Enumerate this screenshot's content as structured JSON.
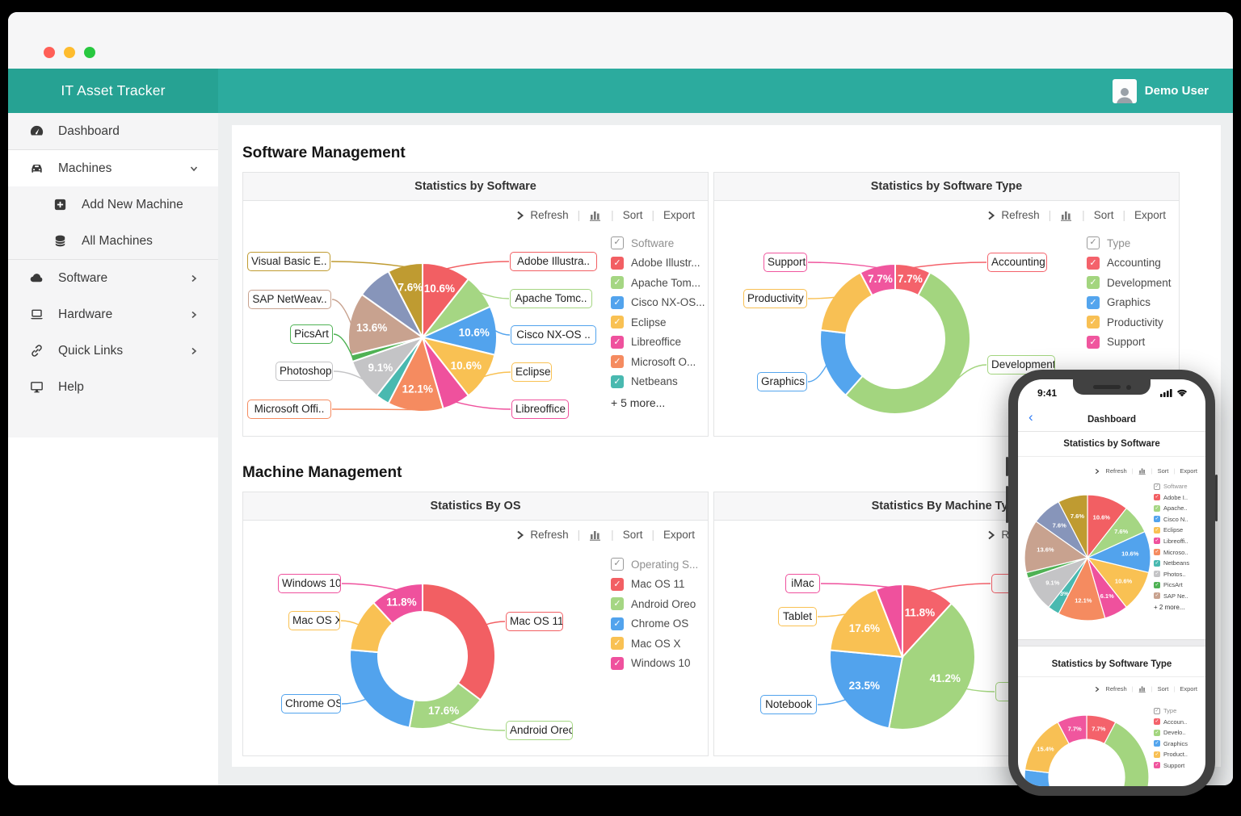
{
  "window": {
    "traffic_lights": [
      "close",
      "minimize",
      "zoom"
    ]
  },
  "header": {
    "app_title": "IT Asset Tracker",
    "user_name": "Demo User",
    "avatar_icon": "user-avatar-icon"
  },
  "sidebar": {
    "items": [
      {
        "label": "Dashboard",
        "icon": "dashboard-gauge-icon",
        "row": "gray"
      },
      {
        "divider": true
      },
      {
        "label": "Machines",
        "icon": "car-icon",
        "chevron": "down",
        "row": "white"
      },
      {
        "label": "Add New Machine",
        "icon": "plus-square-icon",
        "sub": true,
        "row": "gray"
      },
      {
        "label": "All Machines",
        "icon": "database-icon",
        "sub": true,
        "row": "gray"
      },
      {
        "divider": true
      },
      {
        "label": "Software",
        "icon": "cloud-icon",
        "chevron": "right",
        "row": "gray"
      },
      {
        "label": "Hardware",
        "icon": "laptop-icon",
        "chevron": "right",
        "row": "gray"
      },
      {
        "label": "Quick Links",
        "icon": "link-icon",
        "chevron": "right",
        "row": "gray"
      },
      {
        "label": "Help",
        "icon": "monitor-icon",
        "row": "gray"
      }
    ]
  },
  "main": {
    "sections": [
      {
        "heading": "Software Management"
      },
      {
        "heading": "Machine Management"
      }
    ]
  },
  "toolbar": {
    "refresh": "Refresh",
    "sort": "Sort",
    "export": "Export",
    "chart_icon": "bar-chart-icon"
  },
  "chart_data": [
    {
      "id": "statistics-by-software",
      "type": "pie",
      "title": "Statistics by Software",
      "legend_header": "Software",
      "legend_more": "+ 5 more...",
      "legend_more_phone": "+ 2 more...",
      "slices": [
        {
          "name": "Adobe Illustr...",
          "phone_name": "Adobe I..",
          "callout": "Adobe Illustra..",
          "value": 10.6,
          "label": "10.6%",
          "color": "#F25F63"
        },
        {
          "name": "Apache Tom...",
          "phone_name": "Apache..",
          "callout": "Apache Tomc..",
          "value": 7.6,
          "label": "7.6%",
          "color": "#A5D683"
        },
        {
          "name": "Cisco NX-OS...",
          "phone_name": "Cisco N..",
          "callout": "Cisco NX-OS ..",
          "value": 10.6,
          "label": "10.6%",
          "color": "#52A3ED"
        },
        {
          "name": "Eclipse",
          "phone_name": "Eclipse",
          "callout": "Eclipse",
          "value": 10.6,
          "label": "10.6%",
          "color": "#F9C153"
        },
        {
          "name": "Libreoffice",
          "phone_name": "Libreoffi..",
          "callout": "Libreoffice",
          "value": 6.1,
          "label": "6.1%",
          "color": "#EF519D"
        },
        {
          "name": "Microsoft O...",
          "phone_name": "Microso..",
          "callout": "Microsoft Offi..",
          "value": 12.1,
          "label": "12.1%",
          "color": "#F58B60"
        },
        {
          "name": "Netbeans",
          "phone_name": "Netbeans",
          "callout": null,
          "value": 3.0,
          "label": "3%",
          "color": "#49B9B0"
        },
        {
          "name": "Photoshop",
          "phone_name": "Photos..",
          "callout": "Photoshop",
          "value": 9.1,
          "label": "9.1%",
          "color": "#C4C4C6"
        },
        {
          "name": "PicsArt",
          "phone_name": "PicsArt",
          "callout": "PicsArt",
          "value": 1.5,
          "label": "1.5%",
          "color": "#4FB254"
        },
        {
          "name": "SAP NetWeav..",
          "phone_name": "SAP Ne..",
          "callout": "SAP NetWeav..",
          "value": 13.6,
          "label": "13.6%",
          "color": "#C8A28F"
        },
        {
          "name": "",
          "phone_name": "",
          "callout": null,
          "value": 7.6,
          "label": "7.6%",
          "color": "#8795BA"
        },
        {
          "name": "Visual Basic E..",
          "phone_name": "Visual..",
          "callout": "Visual Basic E..",
          "value": 7.6,
          "label": "7.6%",
          "color": "#BF9B31"
        }
      ]
    },
    {
      "id": "statistics-by-software-type",
      "type": "donut",
      "title": "Statistics by Software Type",
      "legend_header": "Type",
      "slices": [
        {
          "name": "Accounting",
          "phone_name": "Accoun..",
          "callout": "Accounting",
          "value": 7.7,
          "label": "7.7%",
          "color": "#F4626B"
        },
        {
          "name": "Development",
          "phone_name": "Develo..",
          "callout": "Development",
          "value": 53.8,
          "label": "53.8%",
          "color": "#A3D57F"
        },
        {
          "name": "Graphics",
          "phone_name": "Graphics",
          "callout": "Graphics",
          "value": 15.4,
          "label": "15.4%",
          "color": "#54A5EE"
        },
        {
          "name": "Productivity",
          "phone_name": "Product..",
          "callout": "Productivity",
          "value": 15.4,
          "label": "15.4%",
          "color": "#F8C054"
        },
        {
          "name": "Support",
          "phone_name": "Support",
          "callout": "Support",
          "value": 7.7,
          "label": "7.7%",
          "color": "#F0569E"
        }
      ]
    },
    {
      "id": "statistics-by-os",
      "type": "donut",
      "title": "Statistics By OS",
      "legend_header": "Operating S...",
      "slices": [
        {
          "name": "Mac OS 11",
          "callout": "Mac OS 11",
          "value": 35.3,
          "label": "35.3%",
          "color": "#F25F63"
        },
        {
          "name": "Android Oreo",
          "callout": "Android Oreo",
          "value": 17.6,
          "label": "17.6%",
          "color": "#A5D683"
        },
        {
          "name": "Chrome OS",
          "callout": "Chrome OS",
          "value": 23.5,
          "label": "23.5%",
          "color": "#52A3ED"
        },
        {
          "name": "Mac OS X",
          "callout": "Mac OS X",
          "value": 11.8,
          "label": "11.8%",
          "color": "#F9C153"
        },
        {
          "name": "Windows 10",
          "callout": "Windows 10",
          "value": 11.8,
          "label": "11.8%",
          "color": "#EF519D"
        }
      ]
    },
    {
      "id": "statistics-by-machine-type",
      "type": "pie",
      "title": "Statistics By Machine Type",
      "legend_header": null,
      "slices": [
        {
          "name": "De",
          "callout": "De",
          "value": 11.8,
          "label": "11.8%",
          "color": "#F4626B"
        },
        {
          "name": "Ma",
          "callout": "Ma",
          "value": 41.2,
          "label": "41.2%",
          "color": "#A3D57F"
        },
        {
          "name": "Notebook",
          "callout": "Notebook",
          "value": 23.5,
          "label": "23.5%",
          "color": "#52A3ED"
        },
        {
          "name": "Tablet",
          "callout": "Tablet",
          "value": 17.6,
          "label": "17.6%",
          "color": "#F9C153"
        },
        {
          "name": "iMac",
          "callout": "iMac",
          "value": 5.9,
          "label": "5.9%",
          "color": "#EF519D"
        }
      ]
    }
  ],
  "phone": {
    "status_time": "9:41",
    "status_icons": [
      "cellular-signal-icon",
      "wifi-icon"
    ],
    "back_icon": "back-chevron-icon",
    "nav_title": "Dashboard"
  }
}
